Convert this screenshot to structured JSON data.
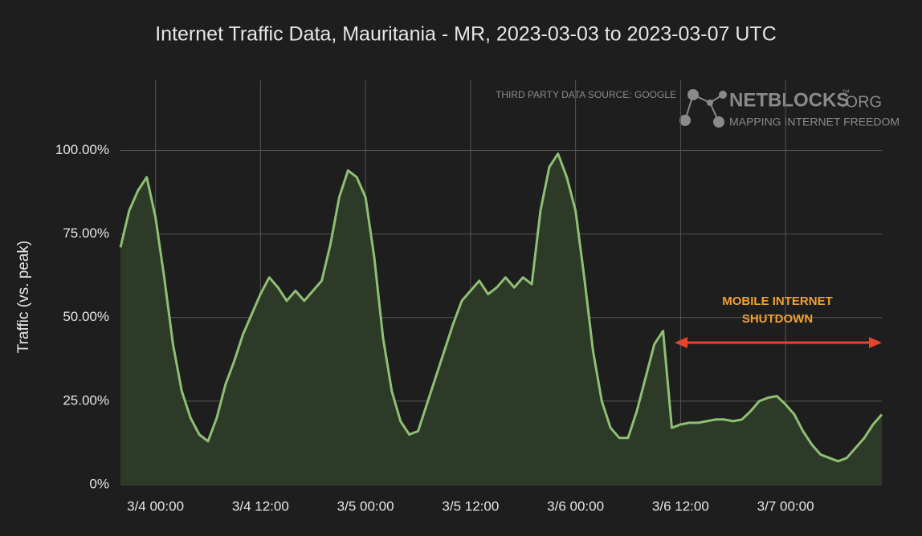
{
  "chart_data": {
    "type": "area",
    "title": "Internet Traffic Data, Mauritania - MR, 2023-03-03 to 2023-03-07 UTC",
    "ylabel": "Traffic (vs. peak)",
    "source": "THIRD PARTY DATA SOURCE: GOOGLE",
    "logo": {
      "name": "NETBLOCKS",
      "tm": "™",
      "suffix": ".ORG",
      "tagline": "MAPPING INTERNET FREEDOM"
    },
    "annotation": [
      "MOBILE INTERNET",
      "SHUTDOWN"
    ],
    "color": "#8fbf73",
    "fill": "#2e3a28",
    "grid": true,
    "x": [
      "2023-03-03 20:00",
      "2023-03-03 21:00",
      "2023-03-03 22:00",
      "2023-03-03 23:00",
      "2023-03-04 00:00",
      "2023-03-04 01:00",
      "2023-03-04 02:00",
      "2023-03-04 03:00",
      "2023-03-04 04:00",
      "2023-03-04 05:00",
      "2023-03-04 06:00",
      "2023-03-04 07:00",
      "2023-03-04 08:00",
      "2023-03-04 09:00",
      "2023-03-04 10:00",
      "2023-03-04 11:00",
      "2023-03-04 12:00",
      "2023-03-04 13:00",
      "2023-03-04 14:00",
      "2023-03-04 15:00",
      "2023-03-04 16:00",
      "2023-03-04 17:00",
      "2023-03-04 18:00",
      "2023-03-04 19:00",
      "2023-03-04 20:00",
      "2023-03-04 21:00",
      "2023-03-04 22:00",
      "2023-03-04 23:00",
      "2023-03-05 00:00",
      "2023-03-05 01:00",
      "2023-03-05 02:00",
      "2023-03-05 03:00",
      "2023-03-05 04:00",
      "2023-03-05 05:00",
      "2023-03-05 06:00",
      "2023-03-05 07:00",
      "2023-03-05 08:00",
      "2023-03-05 09:00",
      "2023-03-05 10:00",
      "2023-03-05 11:00",
      "2023-03-05 12:00",
      "2023-03-05 13:00",
      "2023-03-05 14:00",
      "2023-03-05 15:00",
      "2023-03-05 16:00",
      "2023-03-05 17:00",
      "2023-03-05 18:00",
      "2023-03-05 19:00",
      "2023-03-05 20:00",
      "2023-03-05 21:00",
      "2023-03-05 22:00",
      "2023-03-05 23:00",
      "2023-03-06 00:00",
      "2023-03-06 01:00",
      "2023-03-06 02:00",
      "2023-03-06 03:00",
      "2023-03-06 04:00",
      "2023-03-06 05:00",
      "2023-03-06 06:00",
      "2023-03-06 07:00",
      "2023-03-06 08:00",
      "2023-03-06 09:00",
      "2023-03-06 10:00",
      "2023-03-06 11:00",
      "2023-03-06 12:00",
      "2023-03-06 13:00",
      "2023-03-06 14:00",
      "2023-03-06 15:00",
      "2023-03-06 16:00",
      "2023-03-06 17:00",
      "2023-03-06 18:00",
      "2023-03-06 19:00",
      "2023-03-06 20:00",
      "2023-03-06 21:00",
      "2023-03-06 22:00",
      "2023-03-06 23:00",
      "2023-03-07 00:00",
      "2023-03-07 01:00",
      "2023-03-07 02:00",
      "2023-03-07 03:00",
      "2023-03-07 04:00",
      "2023-03-07 05:00",
      "2023-03-07 06:00",
      "2023-03-07 07:00",
      "2023-03-07 08:00",
      "2023-03-07 09:00",
      "2023-03-07 10:00",
      "2023-03-07 11:00"
    ],
    "values": [
      71,
      82,
      88,
      92,
      80,
      62,
      42,
      28,
      20,
      15,
      13,
      20,
      30,
      37,
      45,
      51,
      57,
      62,
      59,
      55,
      58,
      55,
      58,
      61,
      72,
      86,
      94,
      92,
      86,
      68,
      44,
      28,
      19,
      15,
      16,
      24,
      32,
      40,
      48,
      55,
      58,
      61,
      57,
      59,
      62,
      59,
      62,
      60,
      82,
      95,
      99,
      92,
      82,
      62,
      40,
      25,
      17,
      14,
      14,
      22,
      32,
      42,
      46,
      17,
      18,
      18.5,
      18.5,
      19,
      19.5,
      19.5,
      19,
      19.5,
      22,
      25,
      26,
      26.5,
      24,
      21,
      16,
      12,
      9,
      8,
      7,
      8,
      11,
      14,
      18,
      21
    ],
    "xlim": [
      "2023-03-03 20:00",
      "2023-03-07 11:00"
    ],
    "xticks": [
      {
        "value": "2023-03-04 00:00",
        "label": "3/4 00:00"
      },
      {
        "value": "2023-03-04 12:00",
        "label": "3/4 12:00"
      },
      {
        "value": "2023-03-05 00:00",
        "label": "3/5 00:00"
      },
      {
        "value": "2023-03-05 12:00",
        "label": "3/5 12:00"
      },
      {
        "value": "2023-03-06 00:00",
        "label": "3/6 00:00"
      },
      {
        "value": "2023-03-06 12:00",
        "label": "3/6 12:00"
      },
      {
        "value": "2023-03-07 00:00",
        "label": "3/7 00:00"
      }
    ],
    "ylim": [
      0,
      121
    ],
    "yticks": [
      {
        "value": 0,
        "label": "0%"
      },
      {
        "value": 25,
        "label": "25.00%"
      },
      {
        "value": 50,
        "label": "50.00%"
      },
      {
        "value": 75,
        "label": "75.00%"
      },
      {
        "value": 100,
        "label": "100.00%"
      }
    ]
  }
}
